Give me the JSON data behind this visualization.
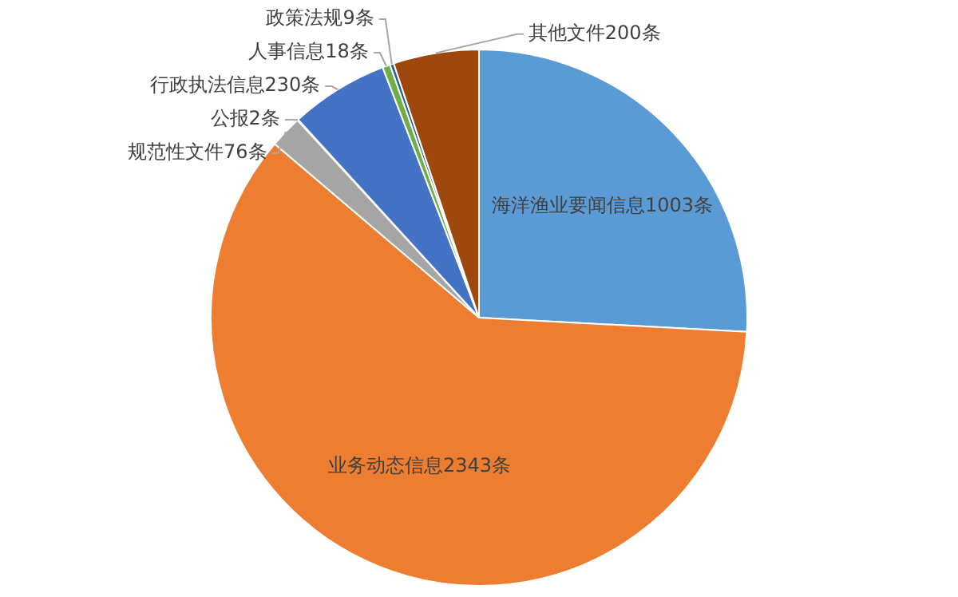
{
  "chart_data": {
    "type": "pie",
    "categories": [
      "海洋渔业要闻信息",
      "业务动态信息",
      "规范性文件",
      "公报",
      "行政执法信息",
      "人事信息",
      "政策法规",
      "其他文件"
    ],
    "values": [
      1003,
      2343,
      76,
      2,
      230,
      18,
      9,
      200
    ],
    "value_labels": [
      "1003条",
      "2343条",
      "76条",
      "2条",
      "230条",
      "18条",
      "9条",
      "200条"
    ],
    "colors": [
      "#5b9bd5",
      "#ed7d31",
      "#a5a5a5",
      "#ffc000",
      "#4472c4",
      "#70ad47",
      "#255e91",
      "#9e480e"
    ]
  }
}
